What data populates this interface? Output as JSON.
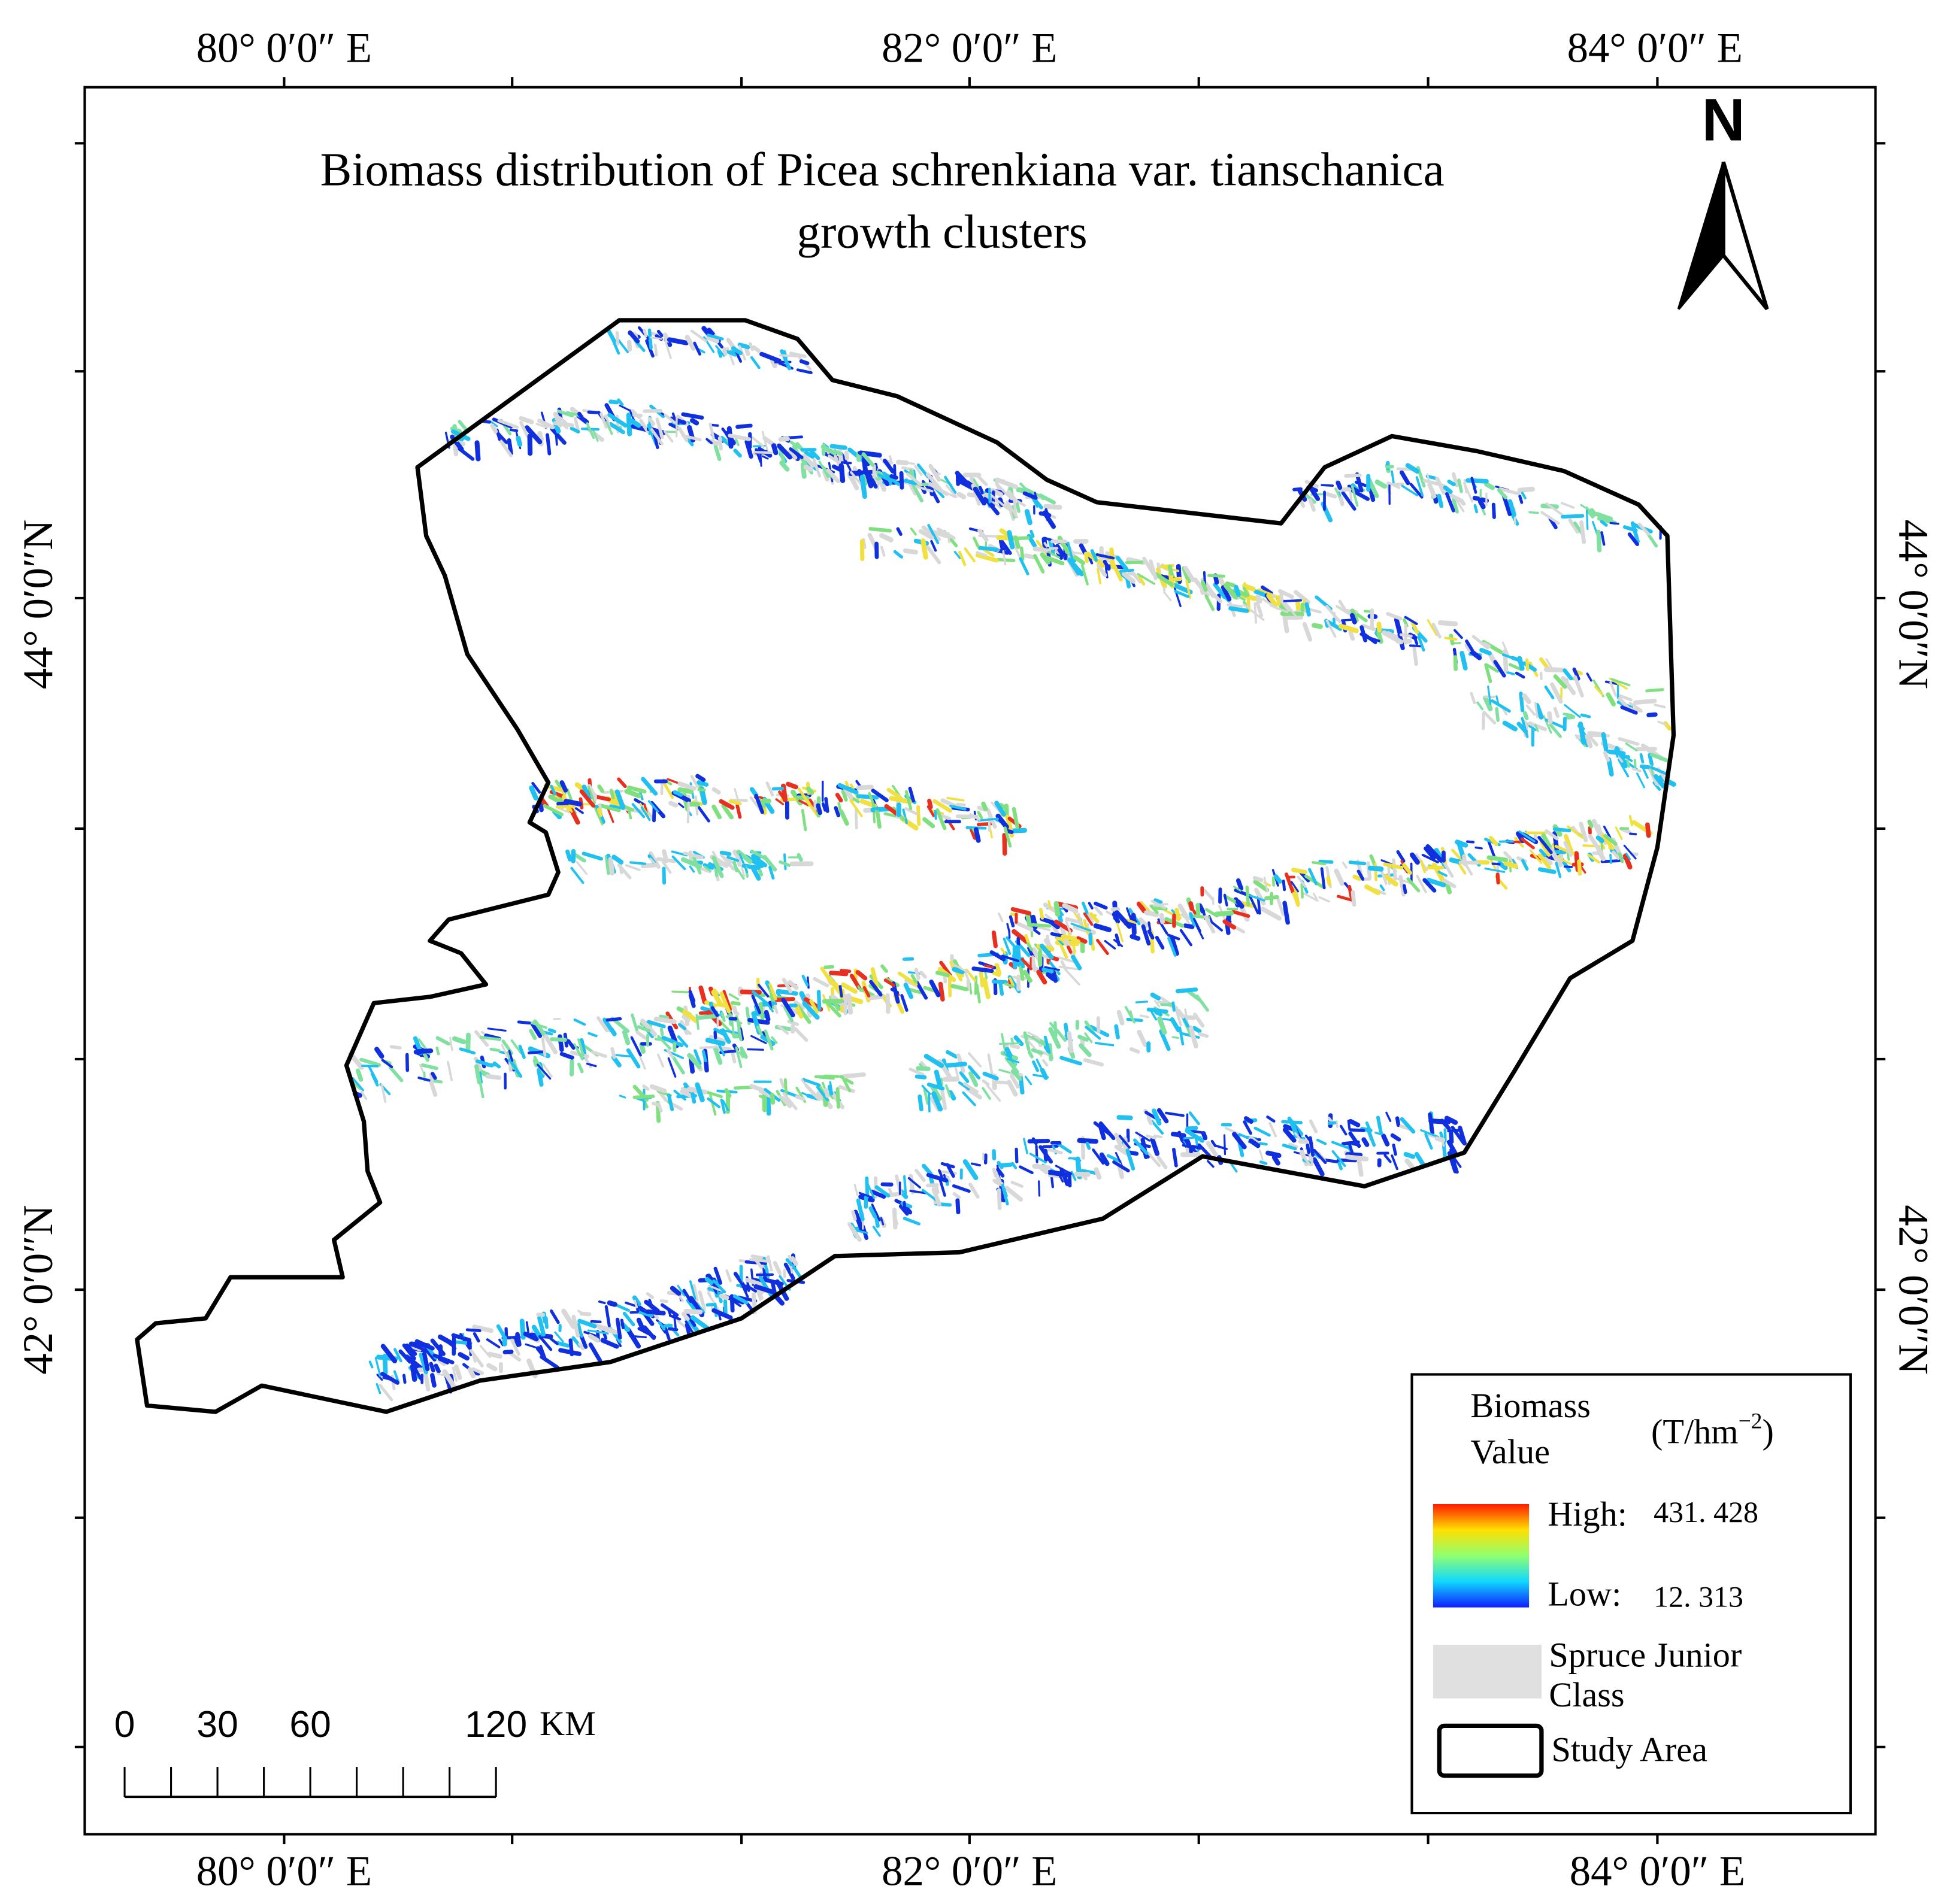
{
  "map": {
    "title": [
      "Biomass distribution of Picea schrenkiana var.  tianschanica",
      "growth clusters"
    ],
    "north": "N",
    "lon_labels": [
      "80° 0′0″ E",
      "82° 0′0″ E",
      "84° 0′0″ E"
    ],
    "lat_labels": [
      "44° 0′0″N",
      "42° 0′0″N"
    ],
    "legend": {
      "title": [
        "Biomass",
        "Value"
      ],
      "unit_base": "(T/hm",
      "unit_exp": "−2",
      "unit_close": ")",
      "high_label": "High:",
      "high_value": "431. 428",
      "low_label": "Low:",
      "low_value": "12. 313",
      "junior": [
        "Spruce Junior",
        "Class"
      ],
      "study_area": "Study Area"
    },
    "scale_bar": {
      "labels": [
        0,
        30,
        60,
        120
      ],
      "unit": "KM"
    }
  }
}
